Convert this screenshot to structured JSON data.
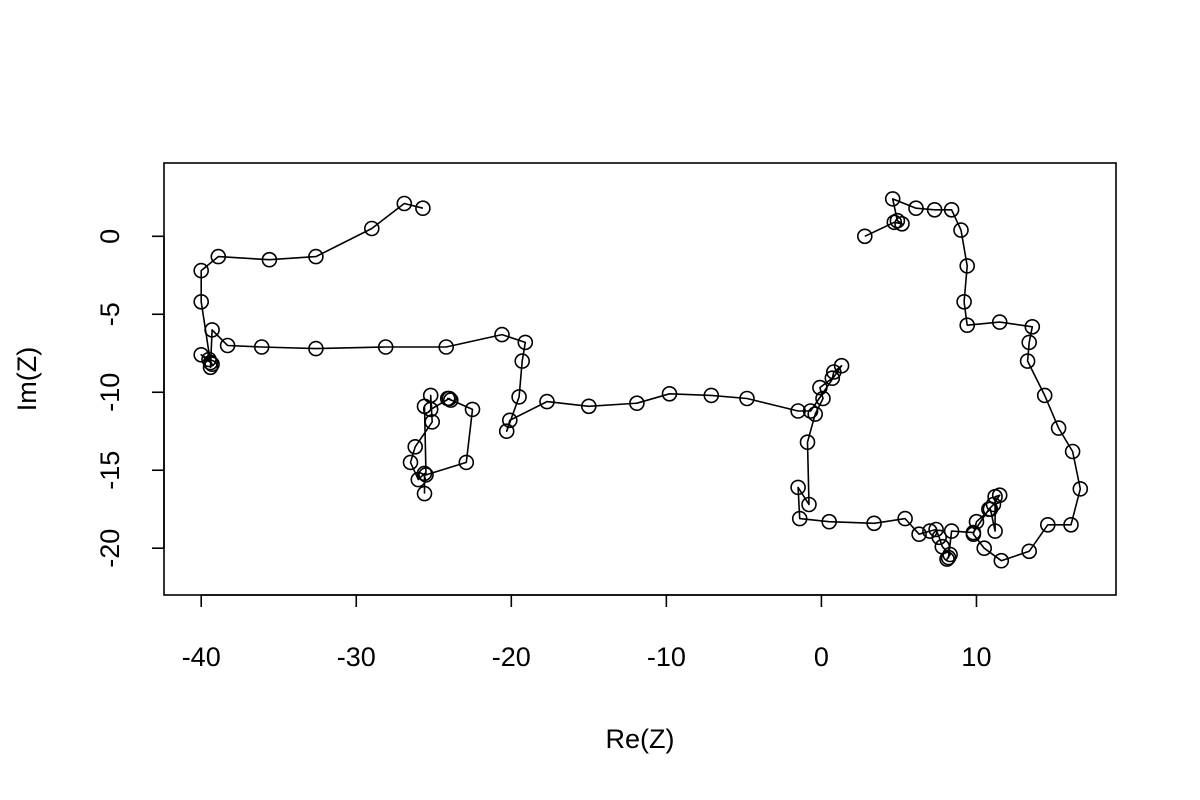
{
  "chart_data": {
    "type": "line",
    "title": "",
    "xlabel": "Re(Z)",
    "ylabel": "Im(Z)",
    "xlim": [
      -42.4,
      19.0
    ],
    "ylim": [
      -23.0,
      4.7
    ],
    "xticks": [
      -40,
      -30,
      -20,
      -10,
      0,
      10
    ],
    "yticks": [
      -20,
      -15,
      -10,
      -5,
      0
    ],
    "xtick_labels": [
      "-40",
      "-30",
      "-20",
      "-10",
      "0",
      "10"
    ],
    "ytick_labels": [
      "-20",
      "-15",
      "-10",
      "-5",
      "0"
    ],
    "grid": false,
    "legend": "none",
    "marker": "open-circle",
    "line_color": "#000000",
    "series": [
      {
        "x": [
          2.8,
          4.7,
          5.2,
          4.9,
          4.6,
          6.1,
          7.3,
          8.4,
          9.0,
          9.4,
          9.2,
          9.4,
          11.5,
          13.6,
          13.4,
          13.3,
          14.4,
          15.3,
          16.2,
          16.7,
          16.1,
          14.6,
          13.4,
          11.6,
          10.5,
          9.8,
          10.0,
          10.9,
          11.2,
          11.2,
          11.5,
          11.1,
          10.8,
          9.8,
          8.4,
          8.2,
          8.1,
          8.3,
          7.8,
          7.6,
          7.4,
          7.0,
          6.3,
          5.4,
          3.4,
          0.5,
          -1.4,
          -1.5,
          -0.8,
          -0.9,
          -0.4,
          0.1,
          -0.1,
          0.7,
          0.8,
          1.3,
          -0.7,
          -1.5,
          -4.8,
          -7.1,
          -9.8,
          -11.9,
          -15.0,
          -17.7,
          -20.1,
          -20.3,
          -19.5,
          -19.3,
          -19.1,
          -20.6,
          -24.2,
          -28.1,
          -32.6,
          -36.1,
          -38.3,
          -39.3,
          -39.4,
          -39.3,
          -39.5,
          -40.0,
          -39.4,
          -40.0,
          -40.0,
          -38.9,
          -35.6,
          -32.6,
          -29.0,
          -26.9,
          -25.7
        ],
        "y": [
          -0.0,
          0.9,
          0.8,
          1.0,
          2.4,
          1.8,
          1.7,
          1.7,
          0.4,
          -1.9,
          -4.2,
          -5.7,
          -5.5,
          -5.8,
          -6.8,
          -8.0,
          -10.2,
          -12.3,
          -13.8,
          -16.2,
          -18.5,
          -18.5,
          -20.2,
          -20.8,
          -20.0,
          -19.1,
          -18.3,
          -17.5,
          -18.9,
          -16.7,
          -16.6,
          -17.2,
          -17.5,
          -19.0,
          -18.9,
          -20.6,
          -20.7,
          -20.4,
          -19.9,
          -19.3,
          -18.8,
          -18.9,
          -19.1,
          -18.1,
          -18.4,
          -18.3,
          -18.1,
          -16.1,
          -17.2,
          -13.2,
          -11.4,
          -10.4,
          -9.7,
          -9.1,
          -8.7,
          -8.3,
          -11.2,
          -11.2,
          -10.4,
          -10.2,
          -10.1,
          -10.7,
          -10.9,
          -10.6,
          -11.8,
          -12.5,
          -10.3,
          -8.0,
          -6.8,
          -6.3,
          -7.1,
          -7.1,
          -7.2,
          -7.1,
          -7.0,
          -6.0,
          -8.4,
          -8.2,
          -7.9,
          -7.6,
          -8.1,
          -4.2,
          -2.2,
          -1.3,
          -1.5,
          -1.3,
          0.5,
          2.1,
          1.8
        ]
      },
      {
        "x": [
          -25.6,
          -25.6,
          -26.0,
          -26.5,
          -26.2,
          -25.1,
          -25.2,
          -25.2,
          -24.0,
          -23.9,
          -24.1,
          -22.5,
          -22.9,
          -25.5,
          -25.6
        ],
        "y": [
          -16.5,
          -15.2,
          -15.6,
          -14.5,
          -13.5,
          -11.9,
          -10.2,
          -11.1,
          -10.4,
          -10.5,
          -10.4,
          -11.1,
          -14.5,
          -15.3,
          -10.9
        ]
      }
    ]
  }
}
